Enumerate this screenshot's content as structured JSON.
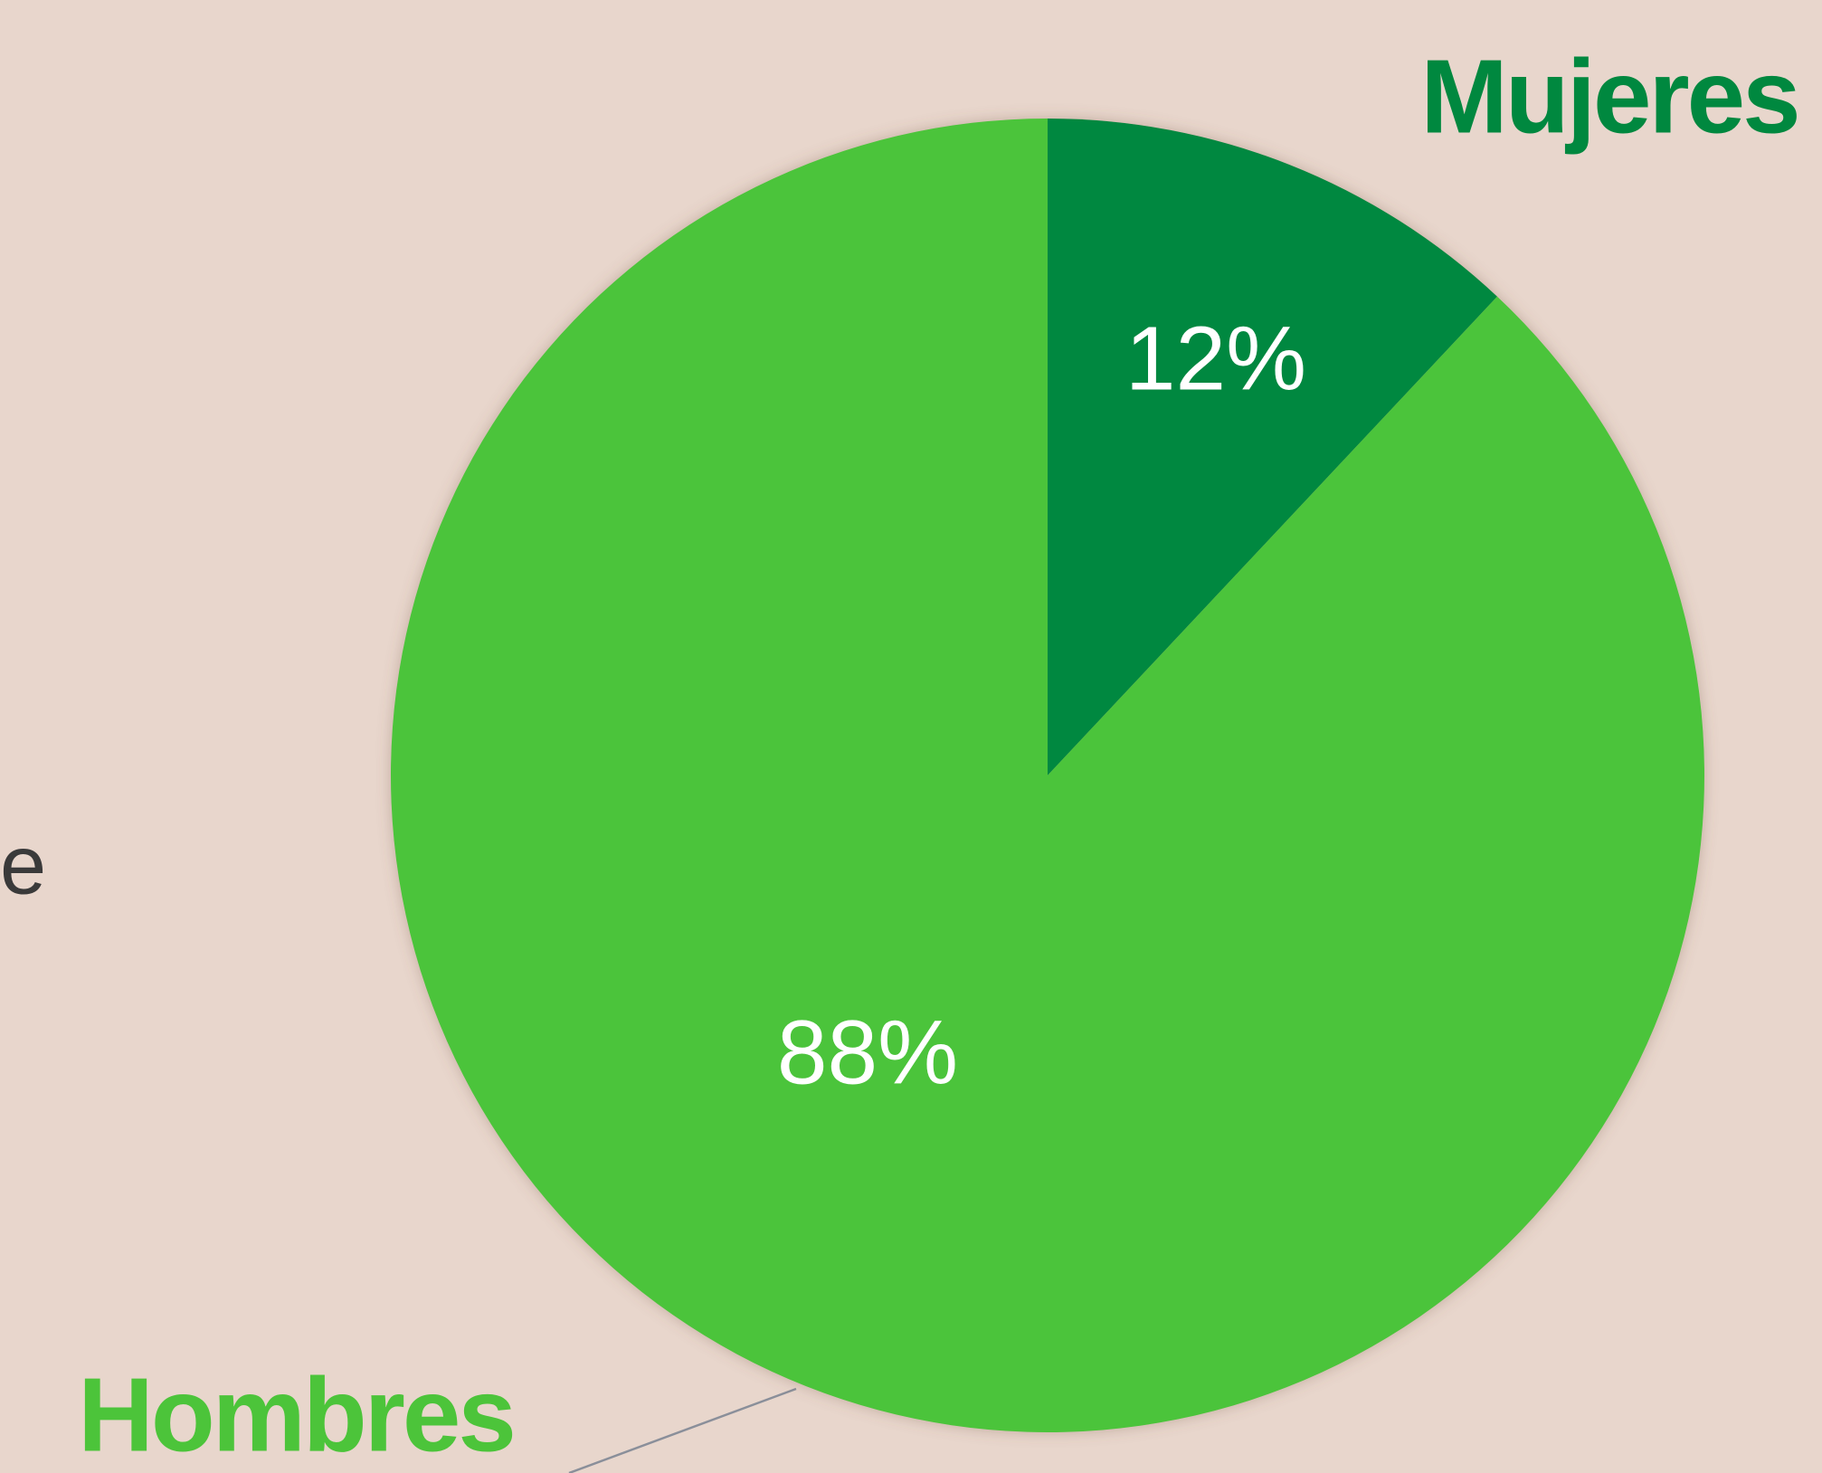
{
  "chart_data": {
    "type": "pie",
    "categories": [
      "Mujeres",
      "Hombres"
    ],
    "values": [
      12,
      88
    ],
    "value_labels": [
      "12%",
      "88%"
    ],
    "colors": [
      "#00883f",
      "#4cc43a"
    ],
    "side_text": "e"
  }
}
